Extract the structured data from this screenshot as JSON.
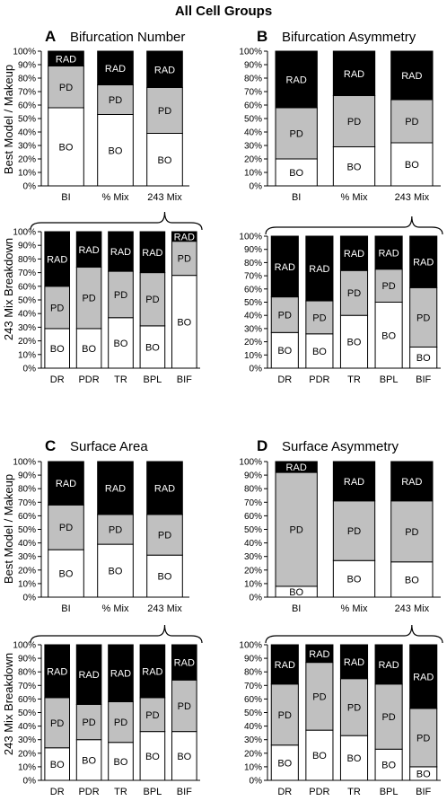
{
  "title": "All Cell Groups",
  "row_labels": {
    "best": "Best Model / Makeup",
    "mix": "243 Mix Breakdown"
  },
  "colors": {
    "BO": "#ffffff",
    "PD": "#c0c0c0",
    "RAD": "#000000",
    "outline": "#000000"
  },
  "chart_data": [
    {
      "type": "bar",
      "stacked": true,
      "percent": true,
      "panel": "A",
      "title": "Bifurcation Number",
      "section": "best",
      "categories": [
        "BI",
        "% Mix",
        "243 Mix"
      ],
      "series": [
        {
          "name": "BO",
          "values": [
            58,
            53,
            39
          ]
        },
        {
          "name": "PD",
          "values": [
            31,
            22,
            34
          ]
        },
        {
          "name": "RAD",
          "values": [
            11,
            25,
            27
          ]
        }
      ],
      "ylim": [
        0,
        100
      ],
      "yticks": [
        "0%",
        "10%",
        "20%",
        "30%",
        "40%",
        "50%",
        "60%",
        "70%",
        "80%",
        "90%",
        "100%"
      ],
      "grid": false
    },
    {
      "type": "bar",
      "stacked": true,
      "percent": true,
      "panel": "A",
      "title": "",
      "section": "mix",
      "categories": [
        "DR",
        "PDR",
        "TR",
        "BPL",
        "BIF"
      ],
      "series": [
        {
          "name": "BO",
          "values": [
            29,
            29,
            37,
            31,
            68
          ]
        },
        {
          "name": "PD",
          "values": [
            31,
            45,
            34,
            39,
            25
          ]
        },
        {
          "name": "RAD",
          "values": [
            40,
            26,
            29,
            30,
            7
          ]
        }
      ],
      "ylim": [
        0,
        100
      ],
      "yticks": [
        "0%",
        "10%",
        "20%",
        "30%",
        "40%",
        "50%",
        "60%",
        "70%",
        "80%",
        "90%",
        "100%"
      ],
      "grid": false
    },
    {
      "type": "bar",
      "stacked": true,
      "percent": true,
      "panel": "B",
      "title": "Bifurcation Asymmetry",
      "section": "best",
      "categories": [
        "BI",
        "% Mix",
        "243 Mix"
      ],
      "series": [
        {
          "name": "BO",
          "values": [
            20,
            29,
            32
          ]
        },
        {
          "name": "PD",
          "values": [
            38,
            38,
            32
          ]
        },
        {
          "name": "RAD",
          "values": [
            42,
            33,
            36
          ]
        }
      ],
      "ylim": [
        0,
        100
      ],
      "yticks": [
        "0%",
        "10%",
        "20%",
        "30%",
        "40%",
        "50%",
        "60%",
        "70%",
        "80%",
        "90%",
        "100%"
      ],
      "grid": false
    },
    {
      "type": "bar",
      "stacked": true,
      "percent": true,
      "panel": "B",
      "title": "",
      "section": "mix",
      "categories": [
        "DR",
        "PDR",
        "TR",
        "BPL",
        "BIF"
      ],
      "series": [
        {
          "name": "BO",
          "values": [
            27,
            26,
            40,
            50,
            16
          ]
        },
        {
          "name": "PD",
          "values": [
            27,
            25,
            34,
            25,
            45
          ]
        },
        {
          "name": "RAD",
          "values": [
            46,
            49,
            26,
            25,
            39
          ]
        }
      ],
      "ylim": [
        0,
        100
      ],
      "yticks": [
        "0%",
        "10%",
        "20%",
        "30%",
        "40%",
        "50%",
        "60%",
        "70%",
        "80%",
        "90%",
        "100%"
      ],
      "grid": false
    },
    {
      "type": "bar",
      "stacked": true,
      "percent": true,
      "panel": "C",
      "title": "Surface Area",
      "section": "best",
      "categories": [
        "BI",
        "% Mix",
        "243 Mix"
      ],
      "series": [
        {
          "name": "BO",
          "values": [
            35,
            39,
            31
          ]
        },
        {
          "name": "PD",
          "values": [
            33,
            22,
            30
          ]
        },
        {
          "name": "RAD",
          "values": [
            32,
            39,
            39
          ]
        }
      ],
      "ylim": [
        0,
        100
      ],
      "yticks": [
        "0%",
        "10%",
        "20%",
        "30%",
        "40%",
        "50%",
        "60%",
        "70%",
        "80%",
        "90%",
        "100%"
      ],
      "grid": false
    },
    {
      "type": "bar",
      "stacked": true,
      "percent": true,
      "panel": "C",
      "title": "",
      "section": "mix",
      "categories": [
        "DR",
        "PDR",
        "TR",
        "BPL",
        "BIF"
      ],
      "series": [
        {
          "name": "BO",
          "values": [
            24,
            30,
            28,
            36,
            36
          ]
        },
        {
          "name": "PD",
          "values": [
            37,
            26,
            30,
            25,
            38
          ]
        },
        {
          "name": "RAD",
          "values": [
            39,
            44,
            42,
            39,
            26
          ]
        }
      ],
      "ylim": [
        0,
        100
      ],
      "yticks": [
        "0%",
        "10%",
        "20%",
        "30%",
        "40%",
        "50%",
        "60%",
        "70%",
        "80%",
        "90%",
        "100%"
      ],
      "grid": false
    },
    {
      "type": "bar",
      "stacked": true,
      "percent": true,
      "panel": "D",
      "title": "Surface Asymmetry",
      "section": "best",
      "categories": [
        "BI",
        "% Mix",
        "243 Mix"
      ],
      "series": [
        {
          "name": "BO",
          "values": [
            8,
            27,
            26
          ]
        },
        {
          "name": "PD",
          "values": [
            84,
            44,
            45
          ]
        },
        {
          "name": "RAD",
          "values": [
            8,
            29,
            29
          ]
        }
      ],
      "ylim": [
        0,
        100
      ],
      "yticks": [
        "0%",
        "10%",
        "20%",
        "30%",
        "40%",
        "50%",
        "60%",
        "70%",
        "80%",
        "90%",
        "100%"
      ],
      "grid": false
    },
    {
      "type": "bar",
      "stacked": true,
      "percent": true,
      "panel": "D",
      "title": "",
      "section": "mix",
      "categories": [
        "DR",
        "PDR",
        "TR",
        "BPL",
        "BIF"
      ],
      "series": [
        {
          "name": "BO",
          "values": [
            26,
            37,
            33,
            23,
            10
          ]
        },
        {
          "name": "PD",
          "values": [
            45,
            50,
            42,
            48,
            43
          ]
        },
        {
          "name": "RAD",
          "values": [
            29,
            13,
            25,
            29,
            47
          ]
        }
      ],
      "ylim": [
        0,
        100
      ],
      "yticks": [
        "0%",
        "10%",
        "20%",
        "30%",
        "40%",
        "50%",
        "60%",
        "70%",
        "80%",
        "90%",
        "100%"
      ],
      "grid": false
    }
  ]
}
